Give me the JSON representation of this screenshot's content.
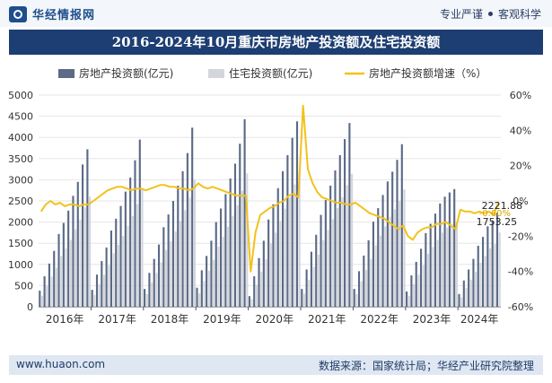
{
  "header": {
    "brand": "华经情报网",
    "tag1": "专业严谨",
    "tag2": "客观科学"
  },
  "title": "2016-2024年10月重庆市房地产投资额及住宅投资额",
  "footer": {
    "url": "www.huaon.com",
    "source": "数据来源：国家统计局；华经产业研究院整理"
  },
  "colors": {
    "bar_primary": "#5b6a86",
    "bar_secondary": "#d3d6dc",
    "line": "#f2c21c",
    "title_bg": "#1d3e72"
  },
  "chart_data": {
    "type": "bar",
    "legend_position": "top",
    "xlabel": "",
    "ylabel_left": "",
    "ylabel_right": "",
    "x_tick_labels": [
      "2016年",
      "2017年",
      "2018年",
      "2019年",
      "2020年",
      "2021年",
      "2022年",
      "2023年",
      "2024年"
    ],
    "y_left": {
      "min": 0,
      "max": 5000,
      "ticks": [
        "0",
        "500",
        "1000",
        "1500",
        "2000",
        "2500",
        "3000",
        "3500",
        "4000",
        "4500",
        "5000"
      ]
    },
    "y_right": {
      "min": -60,
      "max": 60,
      "ticks": [
        "-60%",
        "-40%",
        "-20%",
        "0%",
        "20%",
        "40%",
        "60%"
      ]
    },
    "grid": true,
    "categories": [
      "2016-02",
      "2016-03",
      "2016-04",
      "2016-05",
      "2016-06",
      "2016-07",
      "2016-08",
      "2016-09",
      "2016-10",
      "2016-11",
      "2016-12",
      "2017-02",
      "2017-03",
      "2017-04",
      "2017-05",
      "2017-06",
      "2017-07",
      "2017-08",
      "2017-09",
      "2017-10",
      "2017-11",
      "2017-12",
      "2018-02",
      "2018-03",
      "2018-04",
      "2018-05",
      "2018-06",
      "2018-07",
      "2018-08",
      "2018-09",
      "2018-10",
      "2018-11",
      "2018-12",
      "2019-02",
      "2019-03",
      "2019-04",
      "2019-05",
      "2019-06",
      "2019-07",
      "2019-08",
      "2019-09",
      "2019-10",
      "2019-11",
      "2019-12",
      "2020-02",
      "2020-03",
      "2020-04",
      "2020-05",
      "2020-06",
      "2020-07",
      "2020-08",
      "2020-09",
      "2020-10",
      "2020-11",
      "2020-12",
      "2021-02",
      "2021-03",
      "2021-04",
      "2021-05",
      "2021-06",
      "2021-07",
      "2021-08",
      "2021-09",
      "2021-10",
      "2021-11",
      "2021-12",
      "2022-02",
      "2022-03",
      "2022-04",
      "2022-05",
      "2022-06",
      "2022-07",
      "2022-08",
      "2022-09",
      "2022-10",
      "2022-11",
      "2022-12",
      "2023-02",
      "2023-03",
      "2023-04",
      "2023-05",
      "2023-06",
      "2023-07",
      "2023-08",
      "2023-09",
      "2023-10",
      "2023-11",
      "2023-12",
      "2024-02",
      "2024-03",
      "2024-04",
      "2024-05",
      "2024-06",
      "2024-07",
      "2024-08",
      "2024-09",
      "2024-10"
    ],
    "series": [
      {
        "name": "房地产投资额(亿元)",
        "type": "bar",
        "values": [
          380,
          720,
          1020,
          1320,
          1720,
          1980,
          2270,
          2620,
          2950,
          3360,
          3720,
          400,
          760,
          1080,
          1400,
          1800,
          2080,
          2380,
          2720,
          3050,
          3460,
          3950,
          420,
          800,
          1130,
          1470,
          1880,
          2180,
          2500,
          2860,
          3200,
          3630,
          4230,
          450,
          860,
          1200,
          1560,
          2000,
          2320,
          2660,
          3030,
          3380,
          3850,
          4430,
          250,
          720,
          1150,
          1560,
          2060,
          2420,
          2800,
          3200,
          3580,
          3990,
          4380,
          420,
          880,
          1300,
          1700,
          2170,
          2520,
          2860,
          3220,
          3580,
          3960,
          4340,
          420,
          840,
          1210,
          1570,
          2010,
          2330,
          2640,
          2960,
          3190,
          3470,
          3840,
          360,
          740,
          1060,
          1370,
          1740,
          1960,
          2200,
          2440,
          2600,
          2700,
          2780,
          300,
          620,
          880,
          1130,
          1440,
          1650,
          1900,
          2030,
          2221.88
        ]
      },
      {
        "name": "住宅投资额(亿元)",
        "type": "bar",
        "values": [
          260,
          500,
          710,
          920,
          1200,
          1380,
          1580,
          1830,
          2060,
          2350,
          2600,
          280,
          530,
          750,
          980,
          1260,
          1460,
          1670,
          1910,
          2140,
          2420,
          2770,
          300,
          570,
          800,
          1050,
          1340,
          1550,
          1780,
          2030,
          2280,
          2580,
          3000,
          320,
          610,
          850,
          1110,
          1420,
          1650,
          1890,
          2150,
          2400,
          2740,
          3150,
          180,
          520,
          830,
          1130,
          1490,
          1750,
          2030,
          2320,
          2590,
          2890,
          3170,
          310,
          640,
          940,
          1230,
          1570,
          1820,
          2070,
          2330,
          2590,
          2870,
          3140,
          300,
          600,
          870,
          1130,
          1450,
          1680,
          1900,
          2130,
          2300,
          2500,
          2770,
          260,
          530,
          760,
          980,
          1250,
          1410,
          1580,
          1750,
          1870,
          1950,
          2000,
          220,
          450,
          640,
          820,
          1040,
          1200,
          1380,
          1480,
          1753.25
        ]
      },
      {
        "name": "房地产投资额增速（%）",
        "type": "line",
        "values": [
          -6,
          -2,
          0,
          -2,
          -1,
          -3,
          -2,
          -2,
          -3,
          -2,
          -2,
          0,
          2,
          4,
          6,
          7,
          8,
          8,
          7,
          6,
          7,
          7,
          6,
          7,
          8,
          9,
          9,
          8,
          8,
          7,
          7,
          6,
          7,
          10,
          8,
          7,
          8,
          7,
          6,
          5,
          4,
          3,
          3,
          3,
          -40,
          -18,
          -8,
          -6,
          -4,
          -3,
          -1,
          0,
          3,
          4,
          2,
          54,
          18,
          10,
          5,
          2,
          1,
          0,
          -1,
          -1,
          -2,
          -2,
          -1,
          -3,
          -5,
          -7,
          -8,
          -9,
          -10,
          -12,
          -14,
          -16,
          -14,
          -20,
          -22,
          -18,
          -16,
          -15,
          -15,
          -13,
          -13,
          -12,
          -14,
          -16,
          -5,
          -6,
          -6,
          -7,
          -6,
          -7,
          -6,
          -8,
          -0.6
        ]
      }
    ],
    "end_labels": {
      "total": "2221.88",
      "residential": "1753.25",
      "growth": "-0.60%"
    }
  }
}
